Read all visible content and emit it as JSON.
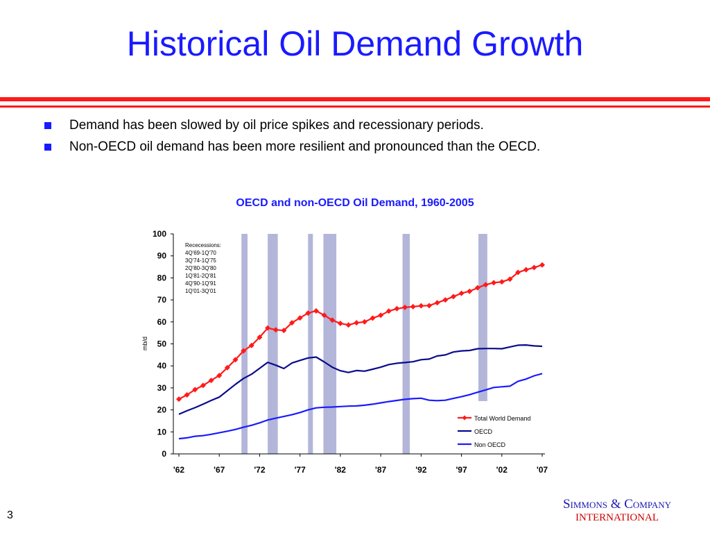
{
  "slide": {
    "title": "Historical Oil Demand Growth",
    "page_number": "3",
    "bullets": [
      "Demand has been slowed by oil price spikes and recessionary periods.",
      "Non-OECD oil demand has been more resilient and pronounced than the OECD."
    ],
    "logo_line1": "Simmons & Company",
    "logo_line2": "INTERNATIONAL",
    "colors": {
      "title": "#1a1aff",
      "rule": "#ff1a1a",
      "bullet": "#1a1aff",
      "logo": "#1a1ab0",
      "logo_accent": "#cc0000"
    }
  },
  "chart_data": {
    "type": "line",
    "title": "OECD and non-OECD Oil Demand, 1960-2005",
    "ylabel": "mb/d",
    "xlabel": "",
    "ylim": [
      0,
      100
    ],
    "yticks": [
      0,
      10,
      20,
      30,
      40,
      50,
      60,
      70,
      80,
      90,
      100
    ],
    "xlim": [
      1962,
      2007
    ],
    "xtick_values": [
      1962,
      1967,
      1972,
      1977,
      1982,
      1987,
      1992,
      1997,
      2002,
      2007
    ],
    "xtick_labels": [
      "'62",
      "'67",
      "'72",
      "'77",
      "'82",
      "'87",
      "'92",
      "'97",
      "'02",
      "'07"
    ],
    "grid": false,
    "legend_position": "bottom-right",
    "x": [
      1962,
      1963,
      1964,
      1965,
      1966,
      1967,
      1968,
      1969,
      1970,
      1971,
      1972,
      1973,
      1974,
      1975,
      1976,
      1977,
      1978,
      1979,
      1980,
      1981,
      1982,
      1983,
      1984,
      1985,
      1986,
      1987,
      1988,
      1989,
      1990,
      1991,
      1992,
      1993,
      1994,
      1995,
      1996,
      1997,
      1998,
      1999,
      2000,
      2001,
      2002,
      2003,
      2004,
      2005,
      2006,
      2007
    ],
    "series": [
      {
        "name": "Total World Demand",
        "color": "#ff1a1a",
        "marker": "diamond",
        "values": [
          24.9,
          26.8,
          29.2,
          31.1,
          33.4,
          35.6,
          39.2,
          42.8,
          46.8,
          49.3,
          53.0,
          57.2,
          56.4,
          56.1,
          59.6,
          61.8,
          64.0,
          65.0,
          63.0,
          60.8,
          59.3,
          58.6,
          59.6,
          60.0,
          61.7,
          63.0,
          64.9,
          66.0,
          66.6,
          66.9,
          67.3,
          67.4,
          68.7,
          70.0,
          71.5,
          73.0,
          73.9,
          75.5,
          76.9,
          77.8,
          78.2,
          79.4,
          82.5,
          83.7,
          84.7,
          85.9
        ]
      },
      {
        "name": "OECD",
        "color": "#0a0a8c",
        "marker": "none",
        "values": [
          18.0,
          19.6,
          21.0,
          22.6,
          24.3,
          25.8,
          28.7,
          31.6,
          34.3,
          36.2,
          38.9,
          41.6,
          40.3,
          38.8,
          41.3,
          42.5,
          43.6,
          44.0,
          41.8,
          39.4,
          37.8,
          37.0,
          37.9,
          37.6,
          38.5,
          39.4,
          40.6,
          41.2,
          41.5,
          41.9,
          42.8,
          43.1,
          44.5,
          45.0,
          46.3,
          46.8,
          47.0,
          47.8,
          47.9,
          47.9,
          47.8,
          48.6,
          49.4,
          49.5,
          49.1,
          48.9
        ]
      },
      {
        "name": "Non OECD",
        "color": "#1a1aff",
        "marker": "none",
        "values": [
          6.9,
          7.3,
          8.0,
          8.3,
          8.9,
          9.6,
          10.3,
          11.1,
          12.1,
          13.0,
          14.1,
          15.4,
          16.2,
          17.0,
          17.8,
          18.8,
          20.0,
          20.9,
          21.2,
          21.3,
          21.5,
          21.7,
          21.8,
          22.1,
          22.6,
          23.2,
          23.8,
          24.3,
          24.8,
          25.1,
          25.3,
          24.4,
          24.2,
          24.4,
          25.2,
          26.0,
          26.9,
          28.0,
          29.1,
          30.2,
          30.5,
          30.8,
          33.0,
          34.0,
          35.5,
          36.5
        ]
      }
    ],
    "recession_shading": {
      "color": "#b3b5d9",
      "note_title": "Rececessions:",
      "periods": [
        {
          "label": "4Q'69-1Q'70",
          "start": 1969.75,
          "end": 1970.5
        },
        {
          "label": "3Q'74-1Q'75",
          "start": 1973.0,
          "end": 1974.25
        },
        {
          "label": "2Q'80-3Q'80",
          "start": 1978.0,
          "end": 1978.6
        },
        {
          "label": "1Q'81-2Q'81",
          "start": 1979.9,
          "end": 1981.5
        },
        {
          "label": "4Q'90-1Q'91",
          "start": 1989.7,
          "end": 1990.6
        },
        {
          "label": "1Q'01-3Q'01",
          "start": 1999.1,
          "end": 2000.2
        }
      ]
    }
  }
}
